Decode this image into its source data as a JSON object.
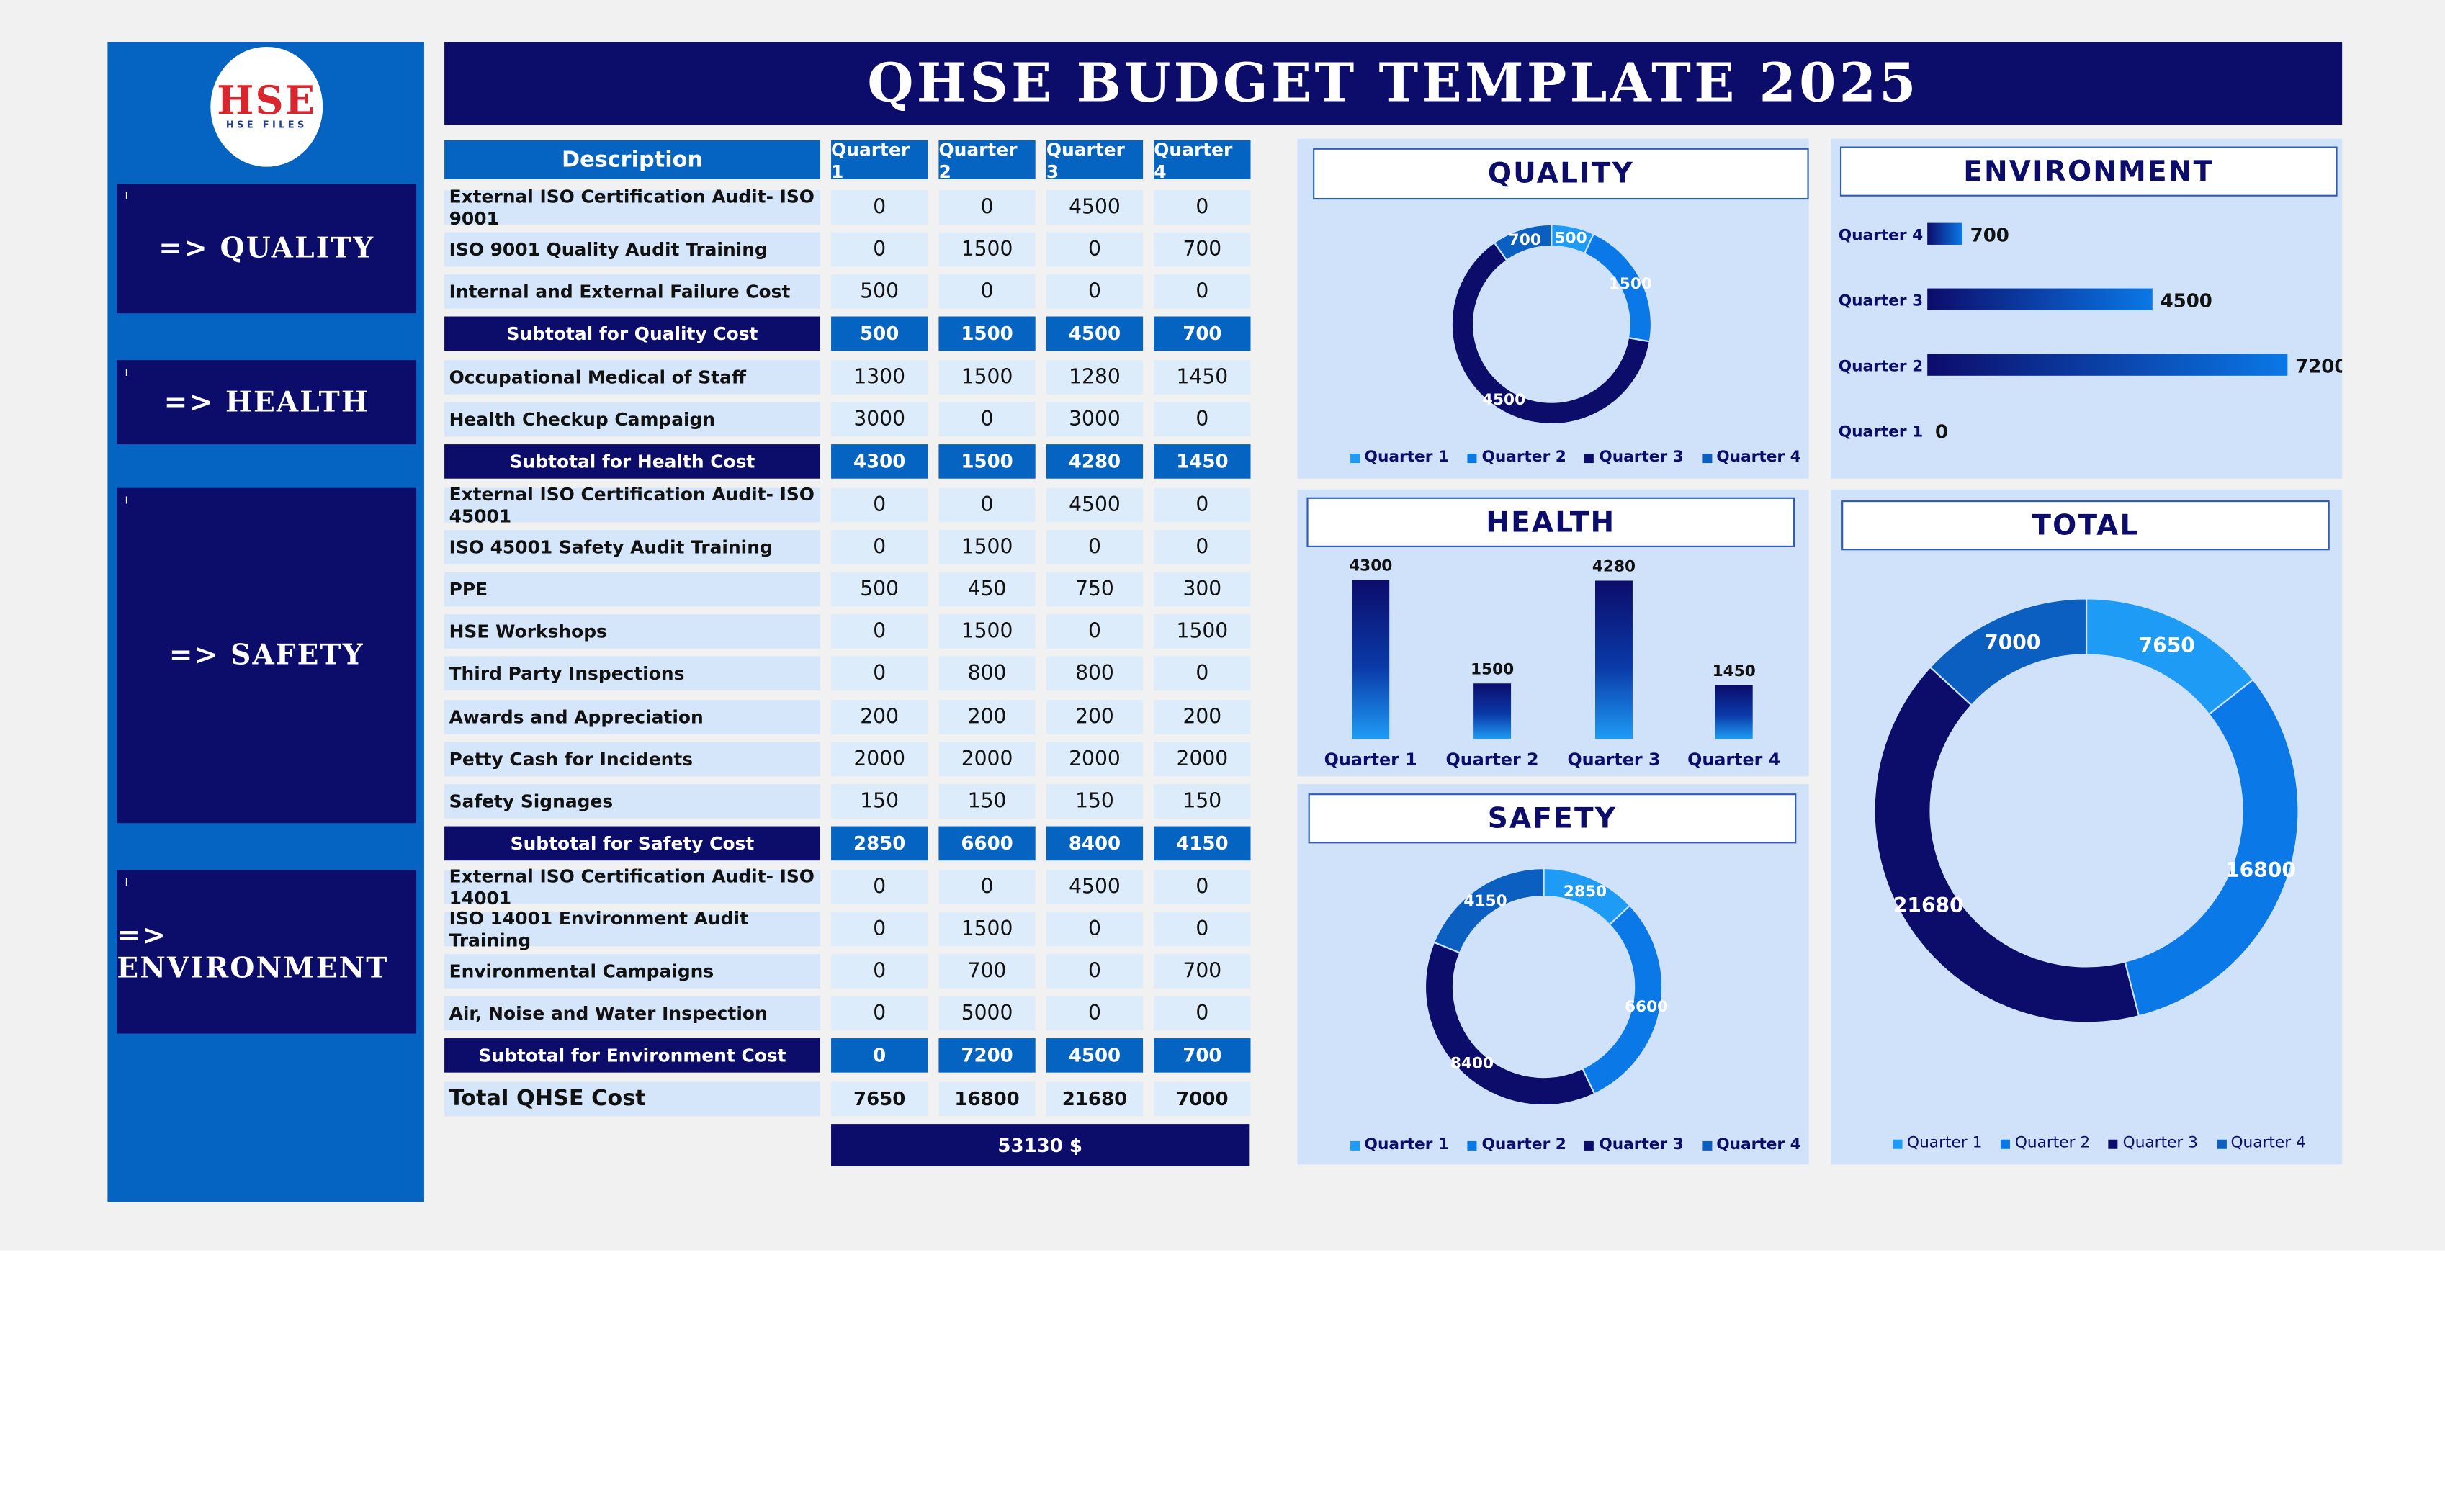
{
  "colors": {
    "navy": "#0c0c6b",
    "blue": "#0563c1",
    "q1": "#1e9bf5",
    "q2": "#0a78e6",
    "q3": "#0c0c6b",
    "q4": "#0b5fc0"
  },
  "logo": {
    "big": "HSE",
    "small": "HSE FILES"
  },
  "title": "QHSE BUDGET TEMPLATE 2025",
  "nav": [
    {
      "label": "=> QUALITY",
      "icon": "arrow-right-icon"
    },
    {
      "label": "=> HEALTH",
      "icon": "arrow-right-icon"
    },
    {
      "label": "=> SAFETY",
      "icon": "arrow-right-icon"
    },
    {
      "label": "=> ENVIRONMENT",
      "icon": "arrow-right-icon"
    }
  ],
  "table": {
    "headers": [
      "Description",
      "Quarter 1",
      "Quarter 2",
      "Quarter 3",
      "Quarter 4"
    ],
    "rows": [
      {
        "kind": "item",
        "label": "External ISO Certification Audit- ISO 9001",
        "values": [
          "0",
          "0",
          "4500",
          "0"
        ]
      },
      {
        "kind": "item",
        "label": "ISO 9001 Quality Audit Training",
        "values": [
          "0",
          "1500",
          "0",
          "700"
        ]
      },
      {
        "kind": "item",
        "label": "Internal and External Failure Cost",
        "values": [
          "500",
          "0",
          "0",
          "0"
        ]
      },
      {
        "kind": "sub",
        "label": "Subtotal for Quality Cost",
        "values": [
          "500",
          "1500",
          "4500",
          "700"
        ]
      },
      {
        "kind": "item",
        "label": "Occupational Medical of Staff",
        "values": [
          "1300",
          "1500",
          "1280",
          "1450"
        ]
      },
      {
        "kind": "item",
        "label": "Health Checkup Campaign",
        "values": [
          "3000",
          "0",
          "3000",
          "0"
        ]
      },
      {
        "kind": "sub",
        "label": "Subtotal for Health Cost",
        "values": [
          "4300",
          "1500",
          "4280",
          "1450"
        ]
      },
      {
        "kind": "item",
        "label": "External ISO Certification Audit- ISO 45001",
        "values": [
          "0",
          "0",
          "4500",
          "0"
        ]
      },
      {
        "kind": "item",
        "label": "ISO 45001 Safety Audit Training",
        "values": [
          "0",
          "1500",
          "0",
          "0"
        ]
      },
      {
        "kind": "item",
        "label": "PPE",
        "values": [
          "500",
          "450",
          "750",
          "300"
        ]
      },
      {
        "kind": "item",
        "label": "HSE Workshops",
        "values": [
          "0",
          "1500",
          "0",
          "1500"
        ]
      },
      {
        "kind": "item",
        "label": "Third Party Inspections",
        "values": [
          "0",
          "800",
          "800",
          "0"
        ]
      },
      {
        "kind": "item",
        "label": "Awards and Appreciation",
        "values": [
          "200",
          "200",
          "200",
          "200"
        ]
      },
      {
        "kind": "item",
        "label": "Petty Cash for Incidents",
        "values": [
          "2000",
          "2000",
          "2000",
          "2000"
        ]
      },
      {
        "kind": "item",
        "label": "Safety Signages",
        "values": [
          "150",
          "150",
          "150",
          "150"
        ]
      },
      {
        "kind": "sub",
        "label": "Subtotal for Safety Cost",
        "values": [
          "2850",
          "6600",
          "8400",
          "4150"
        ]
      },
      {
        "kind": "item",
        "label": "External ISO Certification Audit- ISO 14001",
        "values": [
          "0",
          "0",
          "4500",
          "0"
        ]
      },
      {
        "kind": "item",
        "label": "ISO 14001 Environment Audit Training",
        "values": [
          "0",
          "1500",
          "0",
          "0"
        ]
      },
      {
        "kind": "item",
        "label": "Environmental Campaigns",
        "values": [
          "0",
          "700",
          "0",
          "700"
        ]
      },
      {
        "kind": "item",
        "label": "Air, Noise and Water Inspection",
        "values": [
          "0",
          "5000",
          "0",
          "0"
        ]
      },
      {
        "kind": "sub",
        "label": "Subtotal for Environment Cost",
        "values": [
          "0",
          "7200",
          "4500",
          "700"
        ]
      },
      {
        "kind": "total",
        "label": "Total QHSE Cost",
        "values": [
          "7650",
          "16800",
          "21680",
          "7000"
        ]
      }
    ],
    "grand_total": "53130 $"
  },
  "chart_data": [
    {
      "type": "pie",
      "variant": "donut",
      "title": "QUALITY",
      "categories": [
        "Quarter 1",
        "Quarter 2",
        "Quarter 3",
        "Quarter 4"
      ],
      "values": [
        500,
        1500,
        4500,
        700
      ],
      "labels": [
        "500",
        "1500",
        "4500",
        "700"
      ],
      "legend": "bottom"
    },
    {
      "type": "bar",
      "orientation": "horizontal",
      "title": "ENVIRONMENT",
      "categories": [
        "Quarter 1",
        "Quarter 2",
        "Quarter 3",
        "Quarter 4"
      ],
      "values": [
        0,
        7200,
        4500,
        700
      ],
      "labels": [
        "0",
        "7200",
        "4500",
        "700"
      ]
    },
    {
      "type": "bar",
      "title": "HEALTH",
      "categories": [
        "Quarter 1",
        "Quarter 2",
        "Quarter 3",
        "Quarter 4"
      ],
      "values": [
        4300,
        1500,
        4280,
        1450
      ],
      "labels": [
        "4300",
        "1500",
        "4280",
        "1450"
      ]
    },
    {
      "type": "pie",
      "variant": "donut",
      "title": "SAFETY",
      "categories": [
        "Quarter 1",
        "Quarter 2",
        "Quarter 3",
        "Quarter 4"
      ],
      "values": [
        2850,
        6600,
        8400,
        4150
      ],
      "labels": [
        "2850",
        "6600",
        "8400",
        "4150"
      ],
      "legend": "bottom"
    },
    {
      "type": "pie",
      "variant": "donut",
      "title": "TOTAL",
      "categories": [
        "Quarter 1",
        "Quarter 2",
        "Quarter 3",
        "Quarter 4"
      ],
      "values": [
        7650,
        16800,
        21680,
        7000
      ],
      "labels": [
        "7650",
        "16800",
        "21680",
        "7000"
      ],
      "legend": "bottom"
    }
  ]
}
